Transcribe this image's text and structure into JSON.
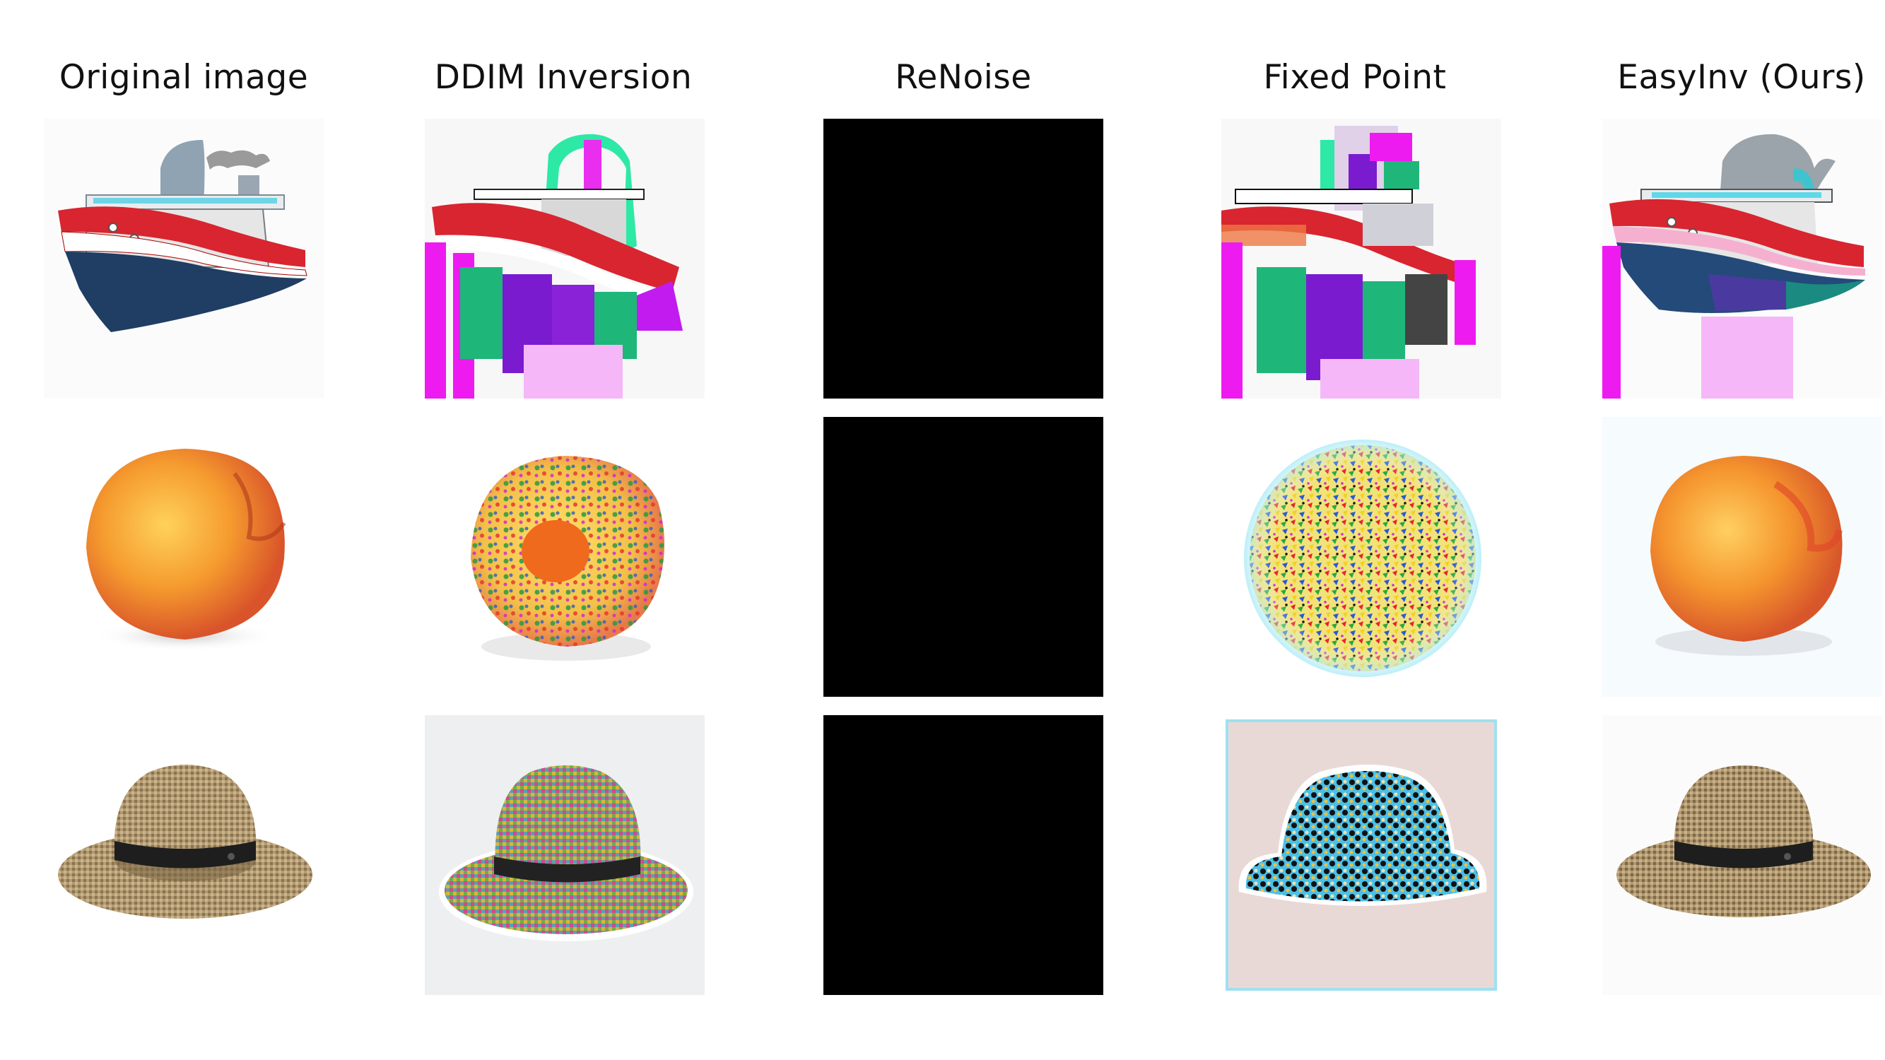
{
  "columns": [
    {
      "label": "Original image"
    },
    {
      "label": "DDIM Inversion"
    },
    {
      "label": "ReNoise"
    },
    {
      "label": "Fixed Point"
    },
    {
      "label": "EasyInv (Ours)"
    }
  ],
  "rows": [
    "ship",
    "peach",
    "hat"
  ],
  "colors": {
    "ship_red": "#d8252f",
    "ship_navy": "#203d63",
    "peach_orange": "#f59a2e",
    "hat_tan": "#b39a72",
    "artifact_magenta": "#ee1bf0",
    "artifact_purple": "#7a1bd0",
    "artifact_green": "#1fb67a",
    "black_output": "#000000"
  }
}
